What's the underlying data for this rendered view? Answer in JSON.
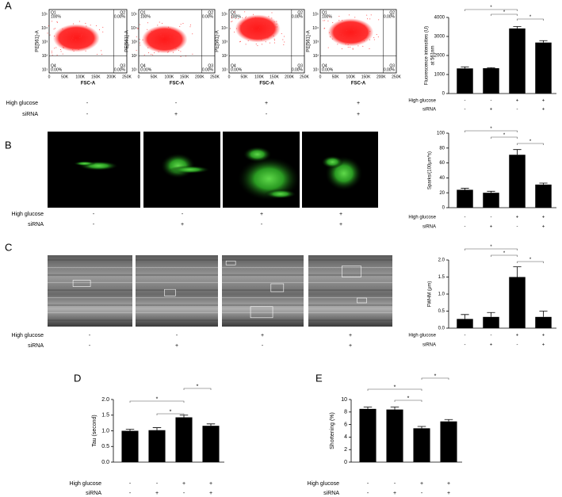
{
  "panels": {
    "labels": [
      "A",
      "B",
      "C",
      "D",
      "E"
    ]
  },
  "flow_cytometry": {
    "xlabel": "FSC-A",
    "ylabel": "PE[561]-A",
    "xticks": [
      "0",
      "50K",
      "100K",
      "150K",
      "200K",
      "250K"
    ],
    "yticks": [
      "10⁵",
      "10⁴",
      "10³",
      "10²",
      "10¹"
    ],
    "plots": [
      {
        "quadrants": [
          "Q1",
          "Q2",
          "Q4",
          "Q3"
        ],
        "percents": [
          "100%",
          "0.00%",
          "0.00%",
          "0.00%"
        ]
      },
      {
        "quadrants": [
          "Q1",
          "Q2",
          "Q4",
          "Q3"
        ],
        "percents": [
          "100%",
          "0.00%",
          "0.00%",
          "0.00%"
        ]
      },
      {
        "quadrants": [
          "Q1",
          "Q2",
          "Q4",
          "Q3"
        ],
        "percents": [
          "100%",
          "0.00%",
          "0.00%",
          "0.00%"
        ]
      },
      {
        "quadrants": [
          "Q1",
          "Q2",
          "Q4",
          "Q3"
        ],
        "percents": [
          "100%",
          "0.00%",
          "0.00%",
          "0.00%"
        ]
      }
    ]
  },
  "image_rows": [
    {
      "conditions": [
        {
          "name": "High glucose",
          "signs": [
            "-",
            "-",
            "+",
            "+"
          ]
        },
        {
          "name": "siRNA",
          "signs": [
            "-",
            "+",
            "-",
            "+"
          ]
        }
      ]
    },
    {
      "conditions": [
        {
          "name": "High glucose",
          "signs": [
            "-",
            "-",
            "+",
            "+"
          ]
        },
        {
          "name": "siRNA",
          "signs": [
            "-",
            "+",
            "-",
            "+"
          ]
        }
      ]
    },
    {
      "conditions": [
        {
          "name": "High glucose",
          "signs": [
            "-",
            "-",
            "+",
            "+"
          ]
        },
        {
          "name": "siRNA",
          "signs": [
            "-",
            "+",
            "-",
            "+"
          ]
        }
      ]
    }
  ],
  "chart_data": [
    {
      "type": "bar",
      "ylabel": [
        "Fluorescence intensities (U)",
        "at 561nm"
      ],
      "color": "#000000",
      "values": [
        1320,
        1330,
        3420,
        2680
      ],
      "errors": [
        80,
        30,
        100,
        100
      ],
      "ylim": [
        0,
        4000
      ],
      "yticks": [
        0,
        1000,
        2000,
        3000,
        4000
      ],
      "significance": [
        {
          "pair": [
            0,
            2
          ],
          "label": "*"
        },
        {
          "pair": [
            1,
            2
          ],
          "label": "*"
        },
        {
          "pair": [
            2,
            3
          ],
          "label": "*"
        }
      ],
      "conditions": [
        {
          "name": "High glucose",
          "signs": [
            "-",
            "-",
            "+",
            "+"
          ]
        },
        {
          "name": "siRNA",
          "signs": [
            "-",
            "+",
            "-",
            "+"
          ]
        }
      ]
    },
    {
      "type": "bar",
      "ylabel": [
        "Sparks/(100μm*s)"
      ],
      "color": "#000000",
      "values": [
        24,
        20,
        71,
        31
      ],
      "errors": [
        2,
        2,
        7,
        2
      ],
      "ylim": [
        0,
        100
      ],
      "yticks": [
        0,
        20,
        40,
        60,
        80,
        100
      ],
      "significance": [
        {
          "pair": [
            0,
            2
          ],
          "label": "*"
        },
        {
          "pair": [
            1,
            2
          ],
          "label": "*"
        },
        {
          "pair": [
            2,
            3
          ],
          "label": "*"
        }
      ],
      "conditions": [
        {
          "name": "High glucose",
          "signs": [
            "-",
            "-",
            "+",
            "+"
          ]
        },
        {
          "name": "siRNA",
          "signs": [
            "-",
            "+",
            "-",
            "+"
          ]
        }
      ]
    },
    {
      "type": "bar",
      "ylabel": [
        "FWHM (μm)"
      ],
      "color": "#000000",
      "values": [
        0.27,
        0.33,
        1.5,
        0.33
      ],
      "errors": [
        0.13,
        0.13,
        0.3,
        0.17
      ],
      "ylim": [
        0,
        2
      ],
      "yticks": [
        {
          "value": 0,
          "label": "0.0"
        },
        0.5,
        {
          "value": 1,
          "label": "1.0"
        },
        1.5,
        {
          "value": 2,
          "label": "2.0"
        }
      ],
      "significance": [
        {
          "pair": [
            0,
            2
          ],
          "label": "*"
        },
        {
          "pair": [
            1,
            2
          ],
          "label": "*"
        },
        {
          "pair": [
            2,
            3
          ],
          "label": "*"
        }
      ],
      "conditions": [
        {
          "name": "High glucose",
          "signs": [
            "-",
            "-",
            "+",
            "+"
          ]
        },
        {
          "name": "siRNA",
          "signs": [
            "-",
            "+",
            "-",
            "+"
          ]
        }
      ]
    },
    {
      "type": "bar",
      "ylabel": [
        "Tau (second)"
      ],
      "color": "#000000",
      "values": [
        1.0,
        1.02,
        1.43,
        1.16
      ],
      "errors": [
        0.05,
        0.08,
        0.07,
        0.06
      ],
      "ylim": [
        0,
        2
      ],
      "yticks": [
        {
          "value": 0,
          "label": "0.0"
        },
        0.5,
        {
          "value": 1,
          "label": "1.0"
        },
        1.5,
        {
          "value": 2,
          "label": "2.0"
        }
      ],
      "significance": [
        {
          "pair": [
            2,
            3
          ],
          "label": "*"
        },
        {
          "pair": [
            0,
            2
          ],
          "label": "*"
        },
        {
          "pair": [
            1,
            2
          ],
          "label": "*"
        }
      ],
      "conditions": [
        {
          "name": "High glucose",
          "signs": [
            "-",
            "-",
            "+",
            "+"
          ]
        },
        {
          "name": "siRNA",
          "signs": [
            "-",
            "+",
            "-",
            "+"
          ]
        }
      ]
    },
    {
      "type": "bar",
      "ylabel": [
        "Shortening (%)"
      ],
      "color": "#000000",
      "values": [
        8.5,
        8.4,
        5.4,
        6.5
      ],
      "errors": [
        0.3,
        0.4,
        0.3,
        0.3
      ],
      "ylim": [
        0,
        10
      ],
      "yticks": [
        0,
        2,
        4,
        6,
        8,
        10
      ],
      "significance": [
        {
          "pair": [
            2,
            3
          ],
          "label": "*"
        },
        {
          "pair": [
            0,
            2
          ],
          "label": "*"
        },
        {
          "pair": [
            1,
            2
          ],
          "label": "*"
        }
      ],
      "conditions": [
        {
          "name": "High glucose",
          "signs": [
            "-",
            "-",
            "+",
            "+"
          ]
        },
        {
          "name": "siRNA",
          "signs": [
            "-",
            "+",
            "-",
            "+"
          ]
        }
      ]
    }
  ]
}
